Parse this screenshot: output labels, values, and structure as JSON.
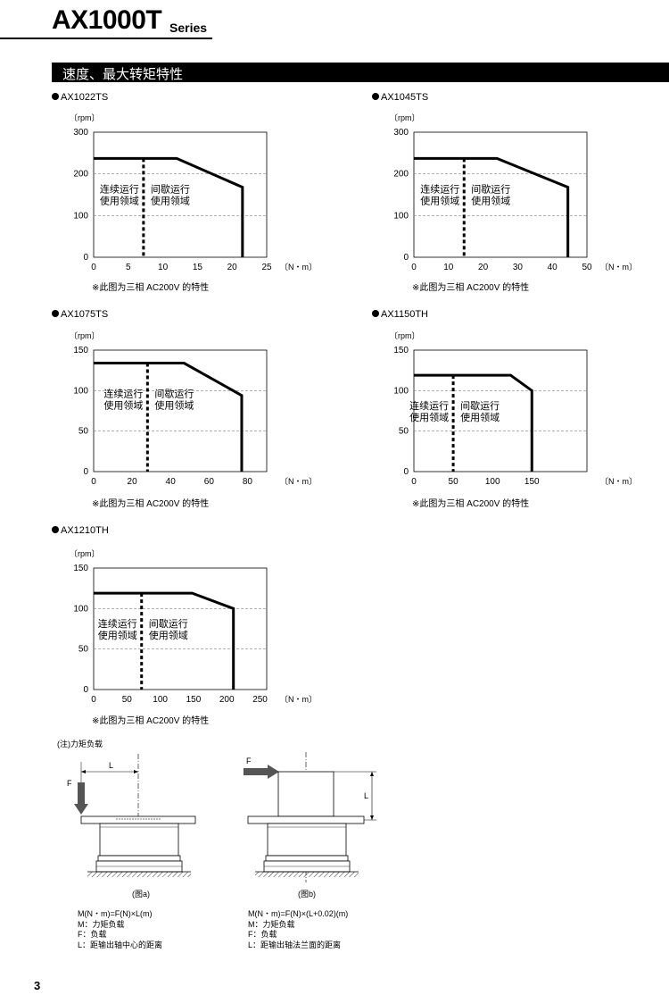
{
  "header": {
    "title": "AX1000T",
    "series": "Series",
    "page_number": "3"
  },
  "section": {
    "title": "速度、最大转矩特性"
  },
  "common": {
    "y_unit": "〔rpm〕",
    "x_unit": "〔N・m〕",
    "region_continuous": [
      "连续运行",
      "使用领域"
    ],
    "region_intermittent": [
      "间歇运行",
      "使用领域"
    ],
    "note": "※此图为三相 AC200V 的特性"
  },
  "chart_data": [
    {
      "type": "line",
      "model": "AX1022TS",
      "title": "AX1022TS",
      "xlabel": "〔N・m〕",
      "ylabel": "〔rpm〕",
      "xlim": [
        0,
        25
      ],
      "ylim": [
        0,
        300
      ],
      "x_ticks": [
        0,
        5,
        10,
        15,
        20,
        25
      ],
      "y_ticks": [
        0,
        100,
        200,
        300
      ],
      "max_torque_curve": {
        "x": [
          0,
          12,
          21.5,
          21.5
        ],
        "y": [
          237,
          237,
          168,
          0
        ]
      },
      "rated_torque": 7.2
    },
    {
      "type": "line",
      "model": "AX1045TS",
      "title": "AX1045TS",
      "xlabel": "〔N・m〕",
      "ylabel": "〔rpm〕",
      "xlim": [
        0,
        50
      ],
      "ylim": [
        0,
        300
      ],
      "x_ticks": [
        0,
        10,
        20,
        30,
        40,
        50
      ],
      "y_ticks": [
        0,
        100,
        200,
        300
      ],
      "max_torque_curve": {
        "x": [
          0,
          24,
          44.5,
          44.5
        ],
        "y": [
          237,
          237,
          168,
          0
        ]
      },
      "rated_torque": 14.5
    },
    {
      "type": "line",
      "model": "AX1075TS",
      "title": "AX1075TS",
      "xlabel": "〔N・m〕",
      "ylabel": "〔rpm〕",
      "xlim": [
        0,
        90
      ],
      "ylim": [
        0,
        150
      ],
      "x_ticks": [
        0,
        20,
        40,
        60,
        80
      ],
      "y_ticks": [
        0,
        50,
        100,
        150
      ],
      "max_torque_curve": {
        "x": [
          0,
          47,
          77,
          77
        ],
        "y": [
          134,
          134,
          94,
          0
        ]
      },
      "rated_torque": 28
    },
    {
      "type": "line",
      "model": "AX1150TH",
      "title": "AX1150TH",
      "xlabel": "〔N・m〕",
      "ylabel": "〔rpm〕",
      "xlim": [
        0,
        220
      ],
      "ylim": [
        0,
        150
      ],
      "x_ticks": [
        0,
        50,
        100,
        150
      ],
      "y_ticks": [
        0,
        50,
        100,
        150
      ],
      "max_torque_curve": {
        "x": [
          0,
          123,
          150,
          150
        ],
        "y": [
          119,
          119,
          100,
          0
        ]
      },
      "rated_torque": 50
    },
    {
      "type": "line",
      "model": "AX1210TH",
      "title": "AX1210TH",
      "xlabel": "〔N・m〕",
      "ylabel": "〔rpm〕",
      "xlim": [
        0,
        260
      ],
      "ylim": [
        0,
        150
      ],
      "x_ticks": [
        0,
        50,
        100,
        150,
        200,
        250
      ],
      "y_ticks": [
        0,
        50,
        100,
        150
      ],
      "max_torque_curve": {
        "x": [
          0,
          148,
          210,
          210
        ],
        "y": [
          119,
          119,
          100,
          0
        ]
      },
      "rated_torque": 72
    }
  ],
  "torque_note": {
    "heading": "(注)力矩负载",
    "fig_a": {
      "caption": "(图a)",
      "F": "F",
      "L": "L",
      "lines": [
        "M(N・m)=F(N)×L(m)",
        "M：力矩负载",
        "F：负载",
        "L：距输出轴中心的距离"
      ]
    },
    "fig_b": {
      "caption": "(图b)",
      "F": "F",
      "L": "L",
      "lines": [
        "M(N・m)=F(N)×(L+0.02)(m)",
        "M：力矩负载",
        "F：负载",
        "L：距输出轴法兰面的距离"
      ]
    }
  }
}
